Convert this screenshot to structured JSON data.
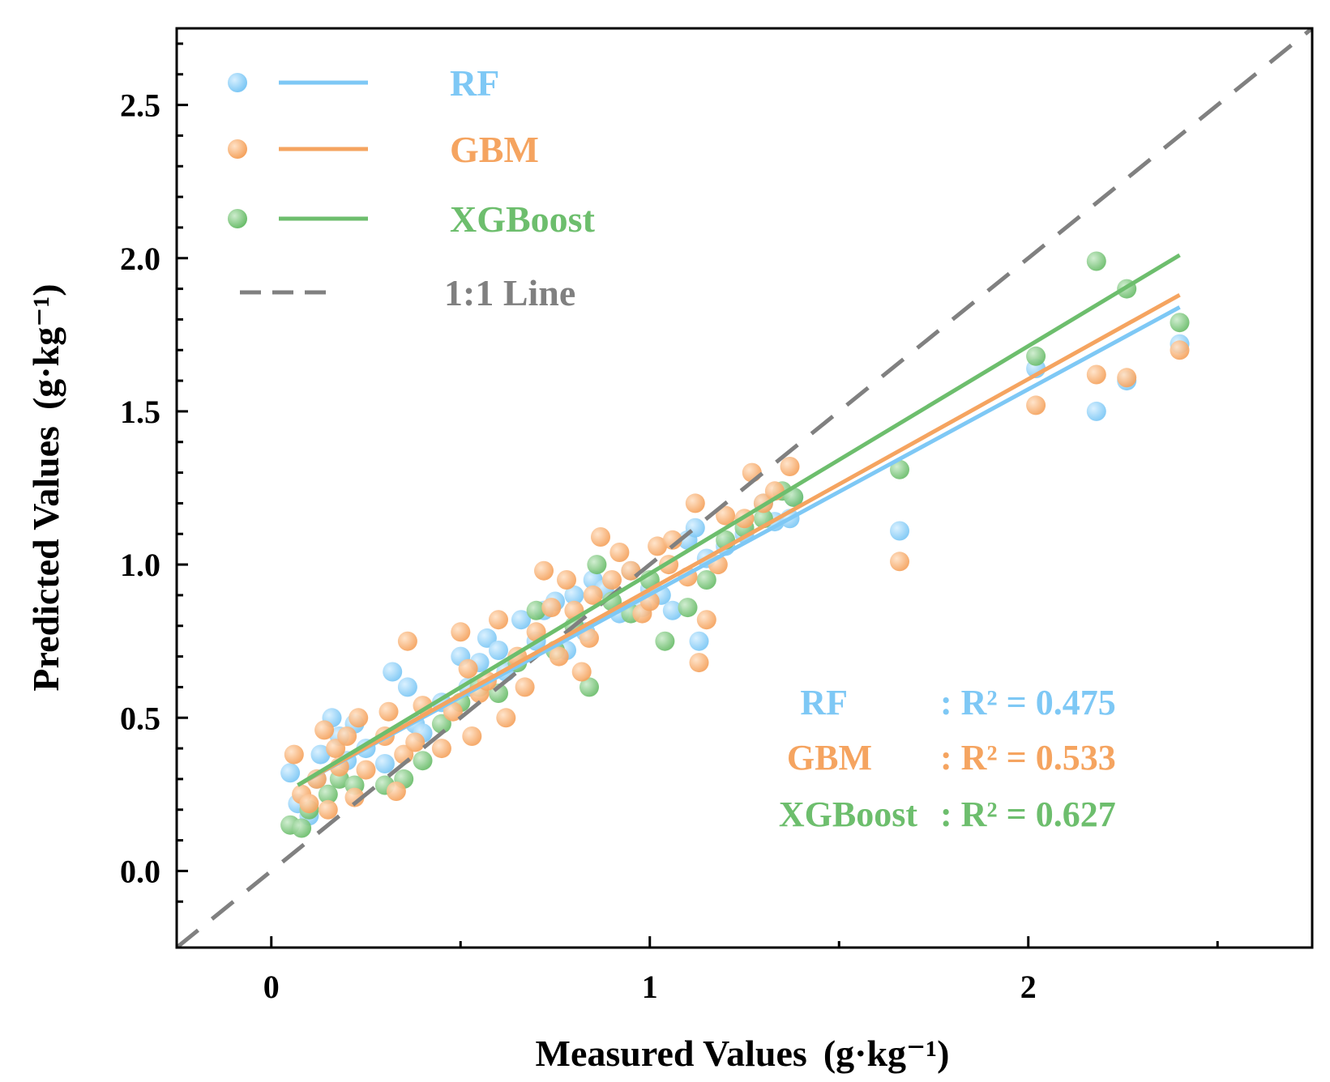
{
  "chart_data": {
    "type": "scatter",
    "title": "",
    "xlabel": "Measured Values",
    "xunit": "(g·kg⁻¹)",
    "ylabel": "Predicted Values",
    "yunit": "(g·kg⁻¹)",
    "xlim": [
      -0.25,
      2.75
    ],
    "ylim": [
      -0.25,
      2.75
    ],
    "xticks": [
      0,
      1,
      2
    ],
    "xtick_labels": [
      "0",
      "1",
      "2"
    ],
    "xminor": [
      0.5,
      1.5,
      2.5
    ],
    "yticks": [
      0,
      0.5,
      1,
      1.5,
      2,
      2.5
    ],
    "ytick_labels": [
      "0.0",
      "0.5",
      "1.0",
      "1.5",
      "2.0",
      "2.5"
    ],
    "grid": false,
    "legend_position": "top-left",
    "legend": [
      {
        "label": "RF",
        "series": "RF"
      },
      {
        "label": "GBM",
        "series": "GBM"
      },
      {
        "label": "XGBoost",
        "series": "XGBoost"
      },
      {
        "label": "1:1 Line",
        "series": "identity"
      }
    ],
    "identity_line": {
      "from": [
        -0.25,
        -0.25
      ],
      "to": [
        2.75,
        2.75
      ],
      "color": "#808080",
      "style": "dashed"
    },
    "series": [
      {
        "name": "RF",
        "color": "#7EC8F5",
        "fit": {
          "x": [
            0.07,
            2.4
          ],
          "y": [
            0.28,
            1.84
          ]
        },
        "r2_name": "RF",
        "r2_label": ": R² = 0.475",
        "points": [
          [
            0.05,
            0.32
          ],
          [
            0.07,
            0.22
          ],
          [
            0.1,
            0.18
          ],
          [
            0.12,
            0.3
          ],
          [
            0.13,
            0.38
          ],
          [
            0.16,
            0.5
          ],
          [
            0.18,
            0.44
          ],
          [
            0.2,
            0.36
          ],
          [
            0.22,
            0.48
          ],
          [
            0.25,
            0.4
          ],
          [
            0.3,
            0.35
          ],
          [
            0.32,
            0.65
          ],
          [
            0.36,
            0.6
          ],
          [
            0.38,
            0.48
          ],
          [
            0.4,
            0.45
          ],
          [
            0.45,
            0.55
          ],
          [
            0.5,
            0.7
          ],
          [
            0.52,
            0.6
          ],
          [
            0.55,
            0.68
          ],
          [
            0.57,
            0.76
          ],
          [
            0.6,
            0.72
          ],
          [
            0.62,
            0.65
          ],
          [
            0.66,
            0.82
          ],
          [
            0.7,
            0.75
          ],
          [
            0.72,
            0.85
          ],
          [
            0.75,
            0.88
          ],
          [
            0.78,
            0.72
          ],
          [
            0.8,
            0.9
          ],
          [
            0.83,
            0.78
          ],
          [
            0.85,
            0.95
          ],
          [
            0.88,
            0.92
          ],
          [
            0.92,
            0.84
          ],
          [
            0.95,
            0.98
          ],
          [
            0.98,
            0.86
          ],
          [
            1.0,
            0.92
          ],
          [
            1.03,
            0.9
          ],
          [
            1.06,
            0.85
          ],
          [
            1.1,
            1.08
          ],
          [
            1.12,
            1.12
          ],
          [
            1.13,
            0.75
          ],
          [
            1.15,
            1.02
          ],
          [
            1.2,
            1.06
          ],
          [
            1.25,
            1.1
          ],
          [
            1.3,
            1.2
          ],
          [
            1.33,
            1.14
          ],
          [
            1.37,
            1.15
          ],
          [
            1.38,
            1.22
          ],
          [
            1.66,
            1.11
          ],
          [
            2.02,
            1.64
          ],
          [
            2.18,
            1.5
          ],
          [
            2.26,
            1.6
          ],
          [
            2.4,
            1.72
          ]
        ]
      },
      {
        "name": "GBM",
        "color": "#F5A460",
        "fit": {
          "x": [
            0.07,
            2.4
          ],
          "y": [
            0.28,
            1.88
          ]
        },
        "r2_name": "GBM",
        "r2_label": ": R² = 0.533",
        "points": [
          [
            0.06,
            0.38
          ],
          [
            0.08,
            0.25
          ],
          [
            0.1,
            0.22
          ],
          [
            0.12,
            0.3
          ],
          [
            0.14,
            0.46
          ],
          [
            0.15,
            0.2
          ],
          [
            0.17,
            0.4
          ],
          [
            0.18,
            0.34
          ],
          [
            0.2,
            0.44
          ],
          [
            0.22,
            0.24
          ],
          [
            0.23,
            0.5
          ],
          [
            0.25,
            0.33
          ],
          [
            0.3,
            0.44
          ],
          [
            0.31,
            0.52
          ],
          [
            0.33,
            0.26
          ],
          [
            0.35,
            0.38
          ],
          [
            0.36,
            0.75
          ],
          [
            0.38,
            0.42
          ],
          [
            0.4,
            0.54
          ],
          [
            0.45,
            0.4
          ],
          [
            0.48,
            0.52
          ],
          [
            0.5,
            0.78
          ],
          [
            0.52,
            0.66
          ],
          [
            0.53,
            0.44
          ],
          [
            0.55,
            0.58
          ],
          [
            0.57,
            0.62
          ],
          [
            0.6,
            0.82
          ],
          [
            0.62,
            0.5
          ],
          [
            0.65,
            0.7
          ],
          [
            0.67,
            0.6
          ],
          [
            0.7,
            0.78
          ],
          [
            0.72,
            0.98
          ],
          [
            0.74,
            0.86
          ],
          [
            0.76,
            0.7
          ],
          [
            0.78,
            0.95
          ],
          [
            0.8,
            0.85
          ],
          [
            0.82,
            0.65
          ],
          [
            0.84,
            0.76
          ],
          [
            0.85,
            0.9
          ],
          [
            0.87,
            1.09
          ],
          [
            0.9,
            0.95
          ],
          [
            0.92,
            1.04
          ],
          [
            0.95,
            0.98
          ],
          [
            0.98,
            0.84
          ],
          [
            1.0,
            0.88
          ],
          [
            1.02,
            1.06
          ],
          [
            1.05,
            1.0
          ],
          [
            1.06,
            1.08
          ],
          [
            1.1,
            0.96
          ],
          [
            1.12,
            1.2
          ],
          [
            1.13,
            0.68
          ],
          [
            1.15,
            0.82
          ],
          [
            1.18,
            1.0
          ],
          [
            1.2,
            1.16
          ],
          [
            1.25,
            1.15
          ],
          [
            1.27,
            1.3
          ],
          [
            1.3,
            1.2
          ],
          [
            1.33,
            1.24
          ],
          [
            1.37,
            1.32
          ],
          [
            1.66,
            1.01
          ],
          [
            2.02,
            1.52
          ],
          [
            2.18,
            1.62
          ],
          [
            2.26,
            1.61
          ],
          [
            2.4,
            1.7
          ]
        ]
      },
      {
        "name": "XGBoost",
        "color": "#6DBE6D",
        "fit": {
          "x": [
            0.07,
            2.4
          ],
          "y": [
            0.28,
            2.01
          ]
        },
        "r2_name": "XGBoost",
        "r2_label": ": R² = 0.627",
        "points": [
          [
            0.05,
            0.15
          ],
          [
            0.08,
            0.14
          ],
          [
            0.1,
            0.2
          ],
          [
            0.15,
            0.25
          ],
          [
            0.18,
            0.3
          ],
          [
            0.22,
            0.28
          ],
          [
            0.3,
            0.28
          ],
          [
            0.35,
            0.3
          ],
          [
            0.4,
            0.36
          ],
          [
            0.45,
            0.48
          ],
          [
            0.5,
            0.55
          ],
          [
            0.55,
            0.6
          ],
          [
            0.6,
            0.58
          ],
          [
            0.65,
            0.68
          ],
          [
            0.7,
            0.85
          ],
          [
            0.75,
            0.72
          ],
          [
            0.8,
            0.8
          ],
          [
            0.84,
            0.6
          ],
          [
            0.86,
            1.0
          ],
          [
            0.9,
            0.88
          ],
          [
            0.95,
            0.84
          ],
          [
            1.0,
            0.95
          ],
          [
            1.04,
            0.75
          ],
          [
            1.1,
            0.86
          ],
          [
            1.15,
            0.95
          ],
          [
            1.2,
            1.08
          ],
          [
            1.25,
            1.12
          ],
          [
            1.3,
            1.15
          ],
          [
            1.35,
            1.24
          ],
          [
            1.38,
            1.22
          ],
          [
            1.66,
            1.31
          ],
          [
            2.02,
            1.68
          ],
          [
            2.18,
            1.99
          ],
          [
            2.26,
            1.9
          ],
          [
            2.4,
            1.79
          ]
        ]
      }
    ]
  },
  "colors": {
    "rf": "#7EC8F5",
    "gbm": "#F5A460",
    "xgboost": "#6DBE6D",
    "identity": "#808080",
    "axis": "#000000"
  }
}
